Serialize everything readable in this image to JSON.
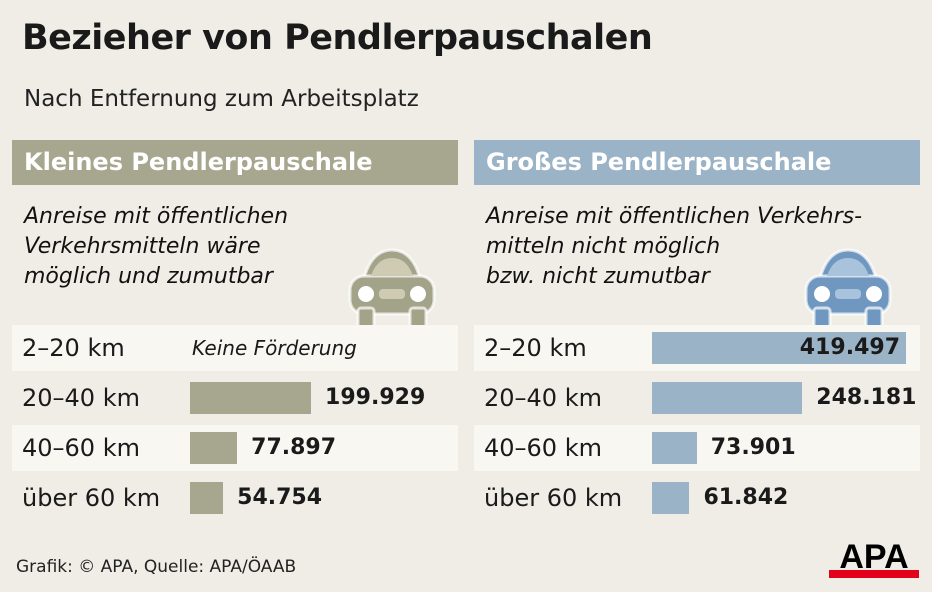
{
  "title": "Bezieher von Pendlerpauschalen",
  "subtitle": "Nach Entfernung zum Arbeitsplatz",
  "footer": "Grafik: © APA, Quelle: APA/ÖAAB",
  "logo_text": "APA",
  "colors": {
    "left": "#a7a78f",
    "right": "#9bb3c7",
    "left_car": "#a3a38a",
    "right_car": "#6f97bf",
    "logo_red": "#e2001a"
  },
  "chart_data": {
    "type": "bar",
    "orientation": "horizontal",
    "categories": [
      "2–20 km",
      "20–40 km",
      "40–60 km",
      "über 60 km"
    ],
    "panels": [
      {
        "name": "Kleines Pendlerpauschale",
        "description": "Anreise mit öffentlichen\nVerkehrsmitteln wäre\nmöglich und zumutbar",
        "icon": "car-icon",
        "values": [
          null,
          199929,
          77897,
          54754
        ],
        "labels": [
          "Keine Förderung",
          "199.929",
          "77.897",
          "54.754"
        ]
      },
      {
        "name": "Großes Pendlerpauschale",
        "description": "Anreise mit öffentlichen Verkehrs-\nmitteln nicht möglich\nbzw. nicht zumutbar",
        "icon": "car-icon",
        "values": [
          419497,
          248181,
          73901,
          61842
        ],
        "labels": [
          "419.497",
          "248.181",
          "73.901",
          "61.842"
        ]
      }
    ]
  }
}
